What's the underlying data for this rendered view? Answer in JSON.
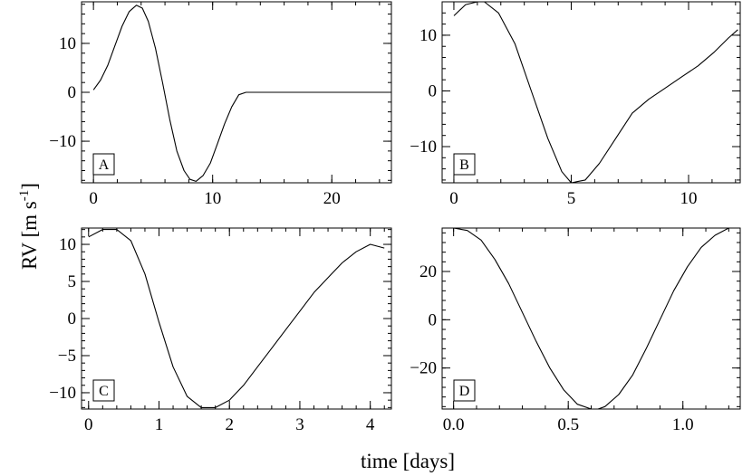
{
  "figure": {
    "ylabel_main": "RV [m s",
    "ylabel_sup": "-1",
    "ylabel_close": "]",
    "xlabel": "time [days]"
  },
  "chart_data": [
    {
      "type": "line",
      "panel": "A",
      "xlim": [
        -1,
        25
      ],
      "ylim": [
        -18.5,
        18.5
      ],
      "xticks": [
        0,
        10,
        20
      ],
      "xtick_labels": [
        "0",
        "10",
        "20"
      ],
      "yticks": [
        -10,
        0,
        10
      ],
      "ytick_labels": [
        "−10",
        "0",
        "10"
      ],
      "series": [
        {
          "x": [
            0,
            0.6,
            1.2,
            1.8,
            2.4,
            3.0,
            3.6,
            4.1,
            4.6,
            5.2,
            5.8,
            6.4,
            7.0,
            7.6,
            8.1,
            8.6,
            9.2,
            9.8,
            10.4,
            11.0,
            11.6,
            12.2,
            12.8,
            13.4,
            14,
            17,
            20,
            23,
            24.5
          ],
          "y": [
            0.5,
            2.5,
            5.5,
            9.5,
            13.5,
            16.5,
            17.8,
            17.2,
            14.5,
            9.0,
            2.0,
            -5.5,
            -12.0,
            -16.0,
            -17.8,
            -18.2,
            -17.0,
            -14.5,
            -10.5,
            -6.5,
            -3.0,
            -0.5,
            0.0,
            0.0,
            0.0,
            0.0,
            0.0,
            0.0,
            0.0
          ]
        }
      ]
    },
    {
      "type": "line",
      "panel": "B",
      "xlim": [
        -0.5,
        12.2
      ],
      "ylim": [
        -16.5,
        16
      ],
      "xticks": [
        0,
        5,
        10
      ],
      "xtick_labels": [
        "0",
        "5",
        "10"
      ],
      "yticks": [
        -10,
        0,
        10
      ],
      "ytick_labels": [
        "−10",
        "0",
        "10"
      ],
      "series": [
        {
          "x": [
            0,
            0.5,
            1.0,
            1.3,
            1.9,
            2.6,
            3.3,
            4.0,
            4.6,
            5.0,
            5.6,
            6.2,
            6.9,
            7.6,
            8.3,
            9.0,
            9.7,
            10.4,
            11.1,
            11.7,
            12.1
          ],
          "y": [
            13.5,
            15.5,
            16.0,
            16.0,
            14.0,
            8.5,
            0.0,
            -8.5,
            -14.5,
            -16.5,
            -16.0,
            -13.0,
            -8.5,
            -4.0,
            -1.5,
            0.5,
            2.5,
            4.5,
            7.0,
            9.5,
            11.0
          ]
        }
      ]
    },
    {
      "type": "line",
      "panel": "C",
      "xlim": [
        -0.1,
        4.3
      ],
      "ylim": [
        -12.2,
        12.2
      ],
      "xticks": [
        0,
        1,
        2,
        3,
        4
      ],
      "xtick_labels": [
        "0",
        "1",
        "2",
        "3",
        "4"
      ],
      "yticks": [
        -10,
        -5,
        0,
        5,
        10
      ],
      "ytick_labels": [
        "−10",
        "−5",
        "0",
        "5",
        "10"
      ],
      "series": [
        {
          "x": [
            0,
            0.2,
            0.4,
            0.6,
            0.8,
            1.0,
            1.2,
            1.4,
            1.6,
            1.8,
            2.0,
            2.2,
            2.4,
            2.6,
            2.8,
            3.0,
            3.2,
            3.4,
            3.6,
            3.8,
            4.0,
            4.2
          ],
          "y": [
            11.0,
            12.0,
            12.0,
            10.5,
            6.0,
            -0.5,
            -6.5,
            -10.5,
            -12.0,
            -12.0,
            -11.0,
            -9.0,
            -6.5,
            -4.0,
            -1.5,
            1.0,
            3.5,
            5.5,
            7.5,
            9.0,
            10.0,
            9.5
          ]
        }
      ]
    },
    {
      "type": "line",
      "panel": "D",
      "xlim": [
        -0.05,
        1.25
      ],
      "ylim": [
        -37,
        38
      ],
      "xticks": [
        0.0,
        0.5,
        1.0
      ],
      "xtick_labels": [
        "0.0",
        "0.5",
        "1.0"
      ],
      "yticks": [
        -20,
        0,
        20
      ],
      "ytick_labels": [
        "−20",
        "0",
        "20"
      ],
      "series": [
        {
          "x": [
            0,
            0.06,
            0.12,
            0.18,
            0.24,
            0.3,
            0.36,
            0.42,
            0.48,
            0.54,
            0.6,
            0.63,
            0.66,
            0.72,
            0.78,
            0.84,
            0.9,
            0.96,
            1.02,
            1.08,
            1.14,
            1.2
          ],
          "y": [
            38,
            37,
            33,
            25,
            15,
            3,
            -9,
            -20,
            -29,
            -35,
            -37,
            -37,
            -36,
            -31,
            -23,
            -12,
            0,
            12,
            22,
            30,
            35,
            38
          ]
        }
      ]
    }
  ]
}
